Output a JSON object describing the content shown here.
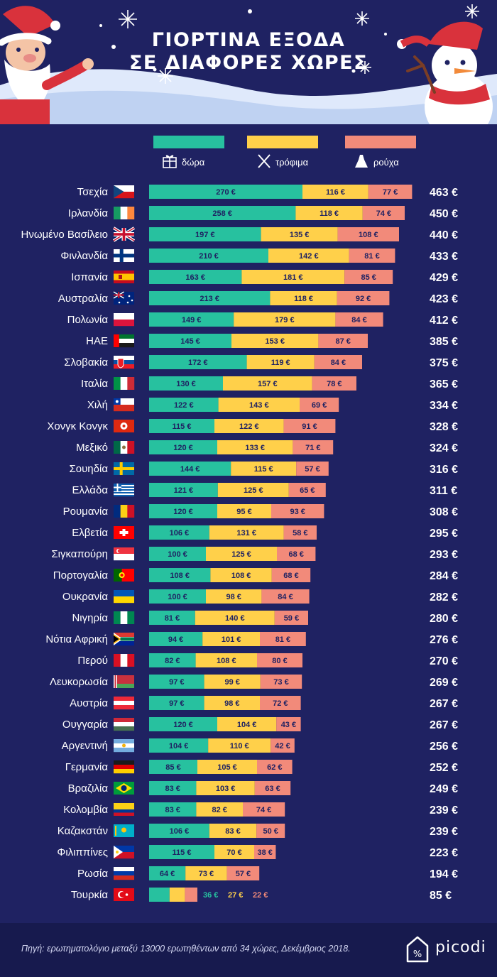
{
  "title": {
    "line1": "ΓΙΟΡΤΙΝΑ ΕΞΟΔΑ",
    "line2": "ΣΕ ΔΙΑΦΟΡΕΣ ΧΩΡΕΣ"
  },
  "colors": {
    "background": "#1f2262",
    "gifts": "#27c19f",
    "food": "#ffd04a",
    "clothes": "#f28a7a",
    "label_text": "#1f2262",
    "text": "#ffffff"
  },
  "legend": [
    {
      "key": "gifts",
      "label": "δώρα",
      "icon": "gift-icon"
    },
    {
      "key": "food",
      "label": "τρόφιμα",
      "icon": "fork-knife-icon"
    },
    {
      "key": "clothes",
      "label": "ρούχα",
      "icon": "dress-icon"
    }
  ],
  "chart_data": {
    "type": "bar",
    "orientation": "horizontal",
    "stacked": true,
    "unit": "€",
    "series": [
      {
        "name": "δώρα",
        "key": "gifts"
      },
      {
        "name": "τρόφιμα",
        "key": "food"
      },
      {
        "name": "ρούχα",
        "key": "clothes"
      }
    ],
    "rows": [
      {
        "country": "Τσεχία",
        "flag": "czech-flag-icon",
        "gifts": 270,
        "food": 116,
        "clothes": 77,
        "total": 463
      },
      {
        "country": "Ιρλανδία",
        "flag": "ireland-flag-icon",
        "gifts": 258,
        "food": 118,
        "clothes": 74,
        "total": 450
      },
      {
        "country": "Ηνωμένο Βασίλειο",
        "flag": "uk-flag-icon",
        "gifts": 197,
        "food": 135,
        "clothes": 108,
        "total": 440
      },
      {
        "country": "Φινλανδία",
        "flag": "finland-flag-icon",
        "gifts": 210,
        "food": 142,
        "clothes": 81,
        "total": 433
      },
      {
        "country": "Ισπανία",
        "flag": "spain-flag-icon",
        "gifts": 163,
        "food": 181,
        "clothes": 85,
        "total": 429
      },
      {
        "country": "Αυστραλία",
        "flag": "australia-flag-icon",
        "gifts": 213,
        "food": 118,
        "clothes": 92,
        "total": 423
      },
      {
        "country": "Πολωνία",
        "flag": "poland-flag-icon",
        "gifts": 149,
        "food": 179,
        "clothes": 84,
        "total": 412
      },
      {
        "country": "ΗΑΕ",
        "flag": "uae-flag-icon",
        "gifts": 145,
        "food": 153,
        "clothes": 87,
        "total": 385
      },
      {
        "country": "Σλοβακία",
        "flag": "slovakia-flag-icon",
        "gifts": 172,
        "food": 119,
        "clothes": 84,
        "total": 375
      },
      {
        "country": "Ιταλία",
        "flag": "italy-flag-icon",
        "gifts": 130,
        "food": 157,
        "clothes": 78,
        "total": 365
      },
      {
        "country": "Χιλή",
        "flag": "chile-flag-icon",
        "gifts": 122,
        "food": 143,
        "clothes": 69,
        "total": 334
      },
      {
        "country": "Χονγκ Κονγκ",
        "flag": "hong-kong-flag-icon",
        "gifts": 115,
        "food": 122,
        "clothes": 91,
        "total": 328
      },
      {
        "country": "Μεξικό",
        "flag": "mexico-flag-icon",
        "gifts": 120,
        "food": 133,
        "clothes": 71,
        "total": 324
      },
      {
        "country": "Σουηδία",
        "flag": "sweden-flag-icon",
        "gifts": 144,
        "food": 115,
        "clothes": 57,
        "total": 316
      },
      {
        "country": "Ελλάδα",
        "flag": "greece-flag-icon",
        "gifts": 121,
        "food": 125,
        "clothes": 65,
        "total": 311
      },
      {
        "country": "Ρουμανία",
        "flag": "romania-flag-icon",
        "gifts": 120,
        "food": 95,
        "clothes": 93,
        "total": 308
      },
      {
        "country": "Ελβετία",
        "flag": "switzerland-flag-icon",
        "gifts": 106,
        "food": 131,
        "clothes": 58,
        "total": 295
      },
      {
        "country": "Σιγκαπούρη",
        "flag": "singapore-flag-icon",
        "gifts": 100,
        "food": 125,
        "clothes": 68,
        "total": 293
      },
      {
        "country": "Πορτογαλία",
        "flag": "portugal-flag-icon",
        "gifts": 108,
        "food": 108,
        "clothes": 68,
        "total": 284
      },
      {
        "country": "Ουκρανία",
        "flag": "ukraine-flag-icon",
        "gifts": 100,
        "food": 98,
        "clothes": 84,
        "total": 282
      },
      {
        "country": "Νιγηρία",
        "flag": "nigeria-flag-icon",
        "gifts": 81,
        "food": 140,
        "clothes": 59,
        "total": 280
      },
      {
        "country": "Νότια Αφρική",
        "flag": "south-africa-flag-icon",
        "gifts": 94,
        "food": 101,
        "clothes": 81,
        "total": 276
      },
      {
        "country": "Περού",
        "flag": "peru-flag-icon",
        "gifts": 82,
        "food": 108,
        "clothes": 80,
        "total": 270
      },
      {
        "country": "Λευκορωσία",
        "flag": "belarus-flag-icon",
        "gifts": 97,
        "food": 99,
        "clothes": 73,
        "total": 269
      },
      {
        "country": "Αυστρία",
        "flag": "austria-flag-icon",
        "gifts": 97,
        "food": 98,
        "clothes": 72,
        "total": 267
      },
      {
        "country": "Ουγγαρία",
        "flag": "hungary-flag-icon",
        "gifts": 120,
        "food": 104,
        "clothes": 43,
        "total": 267
      },
      {
        "country": "Αργεντινή",
        "flag": "argentina-flag-icon",
        "gifts": 104,
        "food": 110,
        "clothes": 42,
        "total": 256
      },
      {
        "country": "Γερμανία",
        "flag": "germany-flag-icon",
        "gifts": 85,
        "food": 105,
        "clothes": 62,
        "total": 252
      },
      {
        "country": "Βραζιλία",
        "flag": "brazil-flag-icon",
        "gifts": 83,
        "food": 103,
        "clothes": 63,
        "total": 249
      },
      {
        "country": "Κολομβία",
        "flag": "colombia-flag-icon",
        "gifts": 83,
        "food": 82,
        "clothes": 74,
        "total": 239
      },
      {
        "country": "Καζακστάν",
        "flag": "kazakhstan-flag-icon",
        "gifts": 106,
        "food": 83,
        "clothes": 50,
        "total": 239
      },
      {
        "country": "Φιλιππίνες",
        "flag": "philippines-flag-icon",
        "gifts": 115,
        "food": 70,
        "clothes": 38,
        "total": 223
      },
      {
        "country": "Ρωσία",
        "flag": "russia-flag-icon",
        "gifts": 64,
        "food": 73,
        "clothes": 57,
        "total": 194
      },
      {
        "country": "Τουρκία",
        "flag": "turkey-flag-icon",
        "gifts": 36,
        "food": 27,
        "clothes": 22,
        "total": 85
      }
    ]
  },
  "footer": {
    "source": "Πηγή: ερωτηματολόγιο μεταξύ 13000 ερωτηθέντων από 34 χώρες, Δεκέμβριος 2018.",
    "brand": "picodi"
  }
}
